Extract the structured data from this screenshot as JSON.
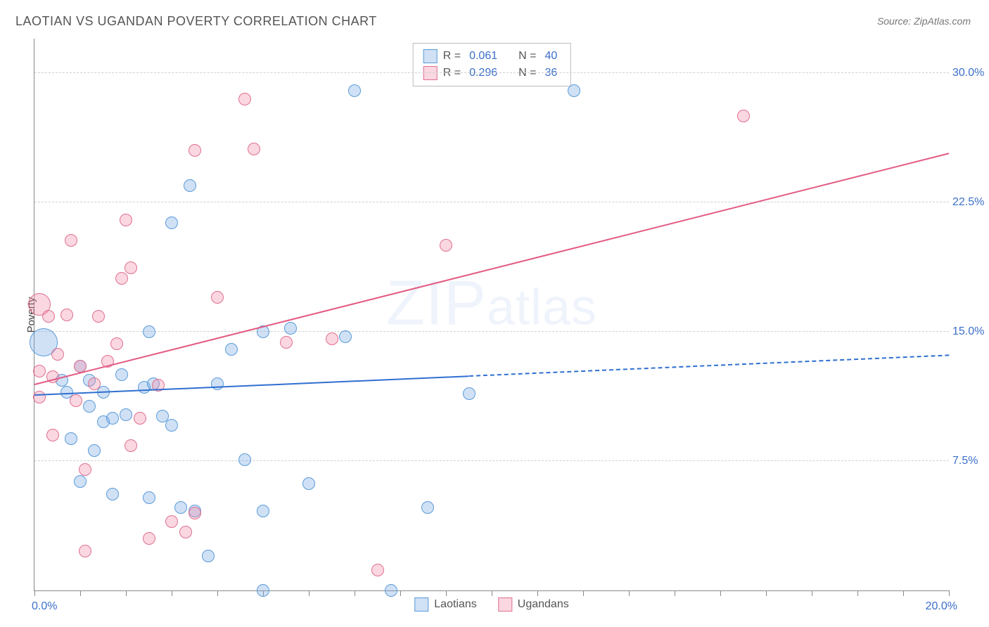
{
  "title": "LAOTIAN VS UGANDAN POVERTY CORRELATION CHART",
  "source": "Source: ZipAtlas.com",
  "watermark": "ZIPatlas",
  "yaxis_title": "Poverty",
  "chart": {
    "type": "scatter",
    "xlim": [
      0,
      20
    ],
    "ylim": [
      0,
      32
    ],
    "xtick_labels": {
      "min": "0.0%",
      "max": "20.0%"
    },
    "xtick_positions": [
      0,
      1,
      2,
      3,
      4,
      5,
      6,
      7,
      8,
      9,
      10,
      11,
      12,
      13,
      14,
      15,
      16,
      17,
      18,
      19,
      20
    ],
    "yticks": [
      {
        "v": 7.5,
        "label": "7.5%"
      },
      {
        "v": 15.0,
        "label": "15.0%"
      },
      {
        "v": 22.5,
        "label": "22.5%"
      },
      {
        "v": 30.0,
        "label": "30.0%"
      }
    ],
    "grid_color": "#d0d0d0",
    "background_color": "#ffffff",
    "axis_color": "#888888",
    "tick_label_color": "#3b6fc9",
    "series": [
      {
        "name": "Laotians",
        "fill": "rgba(120,170,230,0.35)",
        "stroke": "#5a9bd8",
        "marker_radius": 9,
        "R": "0.061",
        "N": "40",
        "trend": {
          "color": "#2f6fd0",
          "width": 2,
          "y_at_xmin": 11.3,
          "y_at_xmax": 13.6,
          "solid_until_x": 9.5,
          "dash": "5,5"
        },
        "points": [
          {
            "x": 0.6,
            "y": 12.2
          },
          {
            "x": 0.2,
            "y": 14.4,
            "r": 20
          },
          {
            "x": 0.7,
            "y": 11.5
          },
          {
            "x": 1.0,
            "y": 13.0
          },
          {
            "x": 1.2,
            "y": 10.7
          },
          {
            "x": 1.2,
            "y": 12.2
          },
          {
            "x": 1.5,
            "y": 11.5
          },
          {
            "x": 1.5,
            "y": 9.8
          },
          {
            "x": 1.7,
            "y": 10.0
          },
          {
            "x": 0.8,
            "y": 8.8
          },
          {
            "x": 1.3,
            "y": 8.1
          },
          {
            "x": 1.0,
            "y": 6.3
          },
          {
            "x": 1.7,
            "y": 5.6
          },
          {
            "x": 2.5,
            "y": 5.4
          },
          {
            "x": 2.0,
            "y": 10.2
          },
          {
            "x": 2.4,
            "y": 11.8
          },
          {
            "x": 2.6,
            "y": 12.0
          },
          {
            "x": 2.8,
            "y": 10.1
          },
          {
            "x": 2.5,
            "y": 15.0
          },
          {
            "x": 3.0,
            "y": 21.3
          },
          {
            "x": 3.4,
            "y": 23.5
          },
          {
            "x": 3.0,
            "y": 9.6
          },
          {
            "x": 3.2,
            "y": 4.8
          },
          {
            "x": 3.5,
            "y": 4.6
          },
          {
            "x": 3.8,
            "y": 2.0
          },
          {
            "x": 4.0,
            "y": 12.0
          },
          {
            "x": 4.3,
            "y": 14.0
          },
          {
            "x": 4.6,
            "y": 7.6
          },
          {
            "x": 5.0,
            "y": 15.0
          },
          {
            "x": 5.0,
            "y": 4.6
          },
          {
            "x": 5.0,
            "y": 0.0
          },
          {
            "x": 5.6,
            "y": 15.2
          },
          {
            "x": 6.0,
            "y": 6.2
          },
          {
            "x": 6.8,
            "y": 14.7
          },
          {
            "x": 7.0,
            "y": 29.0
          },
          {
            "x": 7.8,
            "y": 0.0
          },
          {
            "x": 8.6,
            "y": 4.8
          },
          {
            "x": 9.5,
            "y": 11.4
          },
          {
            "x": 11.8,
            "y": 29.0
          },
          {
            "x": 1.9,
            "y": 12.5
          }
        ]
      },
      {
        "name": "Ugandans",
        "fill": "rgba(240,140,170,0.35)",
        "stroke": "#e0708f",
        "marker_radius": 9,
        "R": "0.296",
        "N": "36",
        "trend": {
          "color": "#e35a82",
          "width": 2.5,
          "y_at_xmin": 11.9,
          "y_at_xmax": 25.3,
          "solid_until_x": 20,
          "dash": null
        },
        "points": [
          {
            "x": 0.1,
            "y": 12.7
          },
          {
            "x": 0.1,
            "y": 16.6,
            "r": 16
          },
          {
            "x": 0.1,
            "y": 11.2
          },
          {
            "x": 0.3,
            "y": 15.9
          },
          {
            "x": 0.4,
            "y": 12.4
          },
          {
            "x": 0.4,
            "y": 9.0
          },
          {
            "x": 0.5,
            "y": 13.7
          },
          {
            "x": 0.7,
            "y": 16.0
          },
          {
            "x": 0.8,
            "y": 20.3
          },
          {
            "x": 0.9,
            "y": 11.0
          },
          {
            "x": 1.0,
            "y": 13.0
          },
          {
            "x": 1.1,
            "y": 7.0
          },
          {
            "x": 1.1,
            "y": 2.3
          },
          {
            "x": 1.4,
            "y": 15.9
          },
          {
            "x": 1.6,
            "y": 13.3
          },
          {
            "x": 1.8,
            "y": 14.3
          },
          {
            "x": 1.9,
            "y": 18.1
          },
          {
            "x": 2.0,
            "y": 21.5
          },
          {
            "x": 2.1,
            "y": 18.7
          },
          {
            "x": 2.1,
            "y": 8.4
          },
          {
            "x": 2.3,
            "y": 10.0
          },
          {
            "x": 2.5,
            "y": 3.0
          },
          {
            "x": 2.7,
            "y": 11.9
          },
          {
            "x": 3.0,
            "y": 4.0
          },
          {
            "x": 3.3,
            "y": 3.4
          },
          {
            "x": 3.5,
            "y": 4.5
          },
          {
            "x": 3.5,
            "y": 25.5
          },
          {
            "x": 4.0,
            "y": 17.0
          },
          {
            "x": 4.6,
            "y": 28.5
          },
          {
            "x": 4.8,
            "y": 25.6
          },
          {
            "x": 5.5,
            "y": 14.4
          },
          {
            "x": 6.5,
            "y": 14.6
          },
          {
            "x": 7.5,
            "y": 1.2
          },
          {
            "x": 9.0,
            "y": 20.0
          },
          {
            "x": 15.5,
            "y": 27.5
          },
          {
            "x": 1.3,
            "y": 12.0
          }
        ]
      }
    ],
    "legend": {
      "border_color": "#bbbbbb",
      "rows": [
        {
          "swatch_fill": "rgba(120,170,230,0.35)",
          "swatch_stroke": "#5a9bd8",
          "r_label": "R =",
          "r_val": "0.061",
          "n_label": "N =",
          "n_val": "40"
        },
        {
          "swatch_fill": "rgba(240,140,170,0.35)",
          "swatch_stroke": "#e0708f",
          "r_label": "R =",
          "r_val": "0.296",
          "n_label": "N =",
          "n_val": "36"
        }
      ]
    },
    "bottom_legend": [
      {
        "swatch_fill": "rgba(120,170,230,0.35)",
        "swatch_stroke": "#5a9bd8",
        "label": "Laotians"
      },
      {
        "swatch_fill": "rgba(240,140,170,0.35)",
        "swatch_stroke": "#e0708f",
        "label": "Ugandans"
      }
    ]
  }
}
